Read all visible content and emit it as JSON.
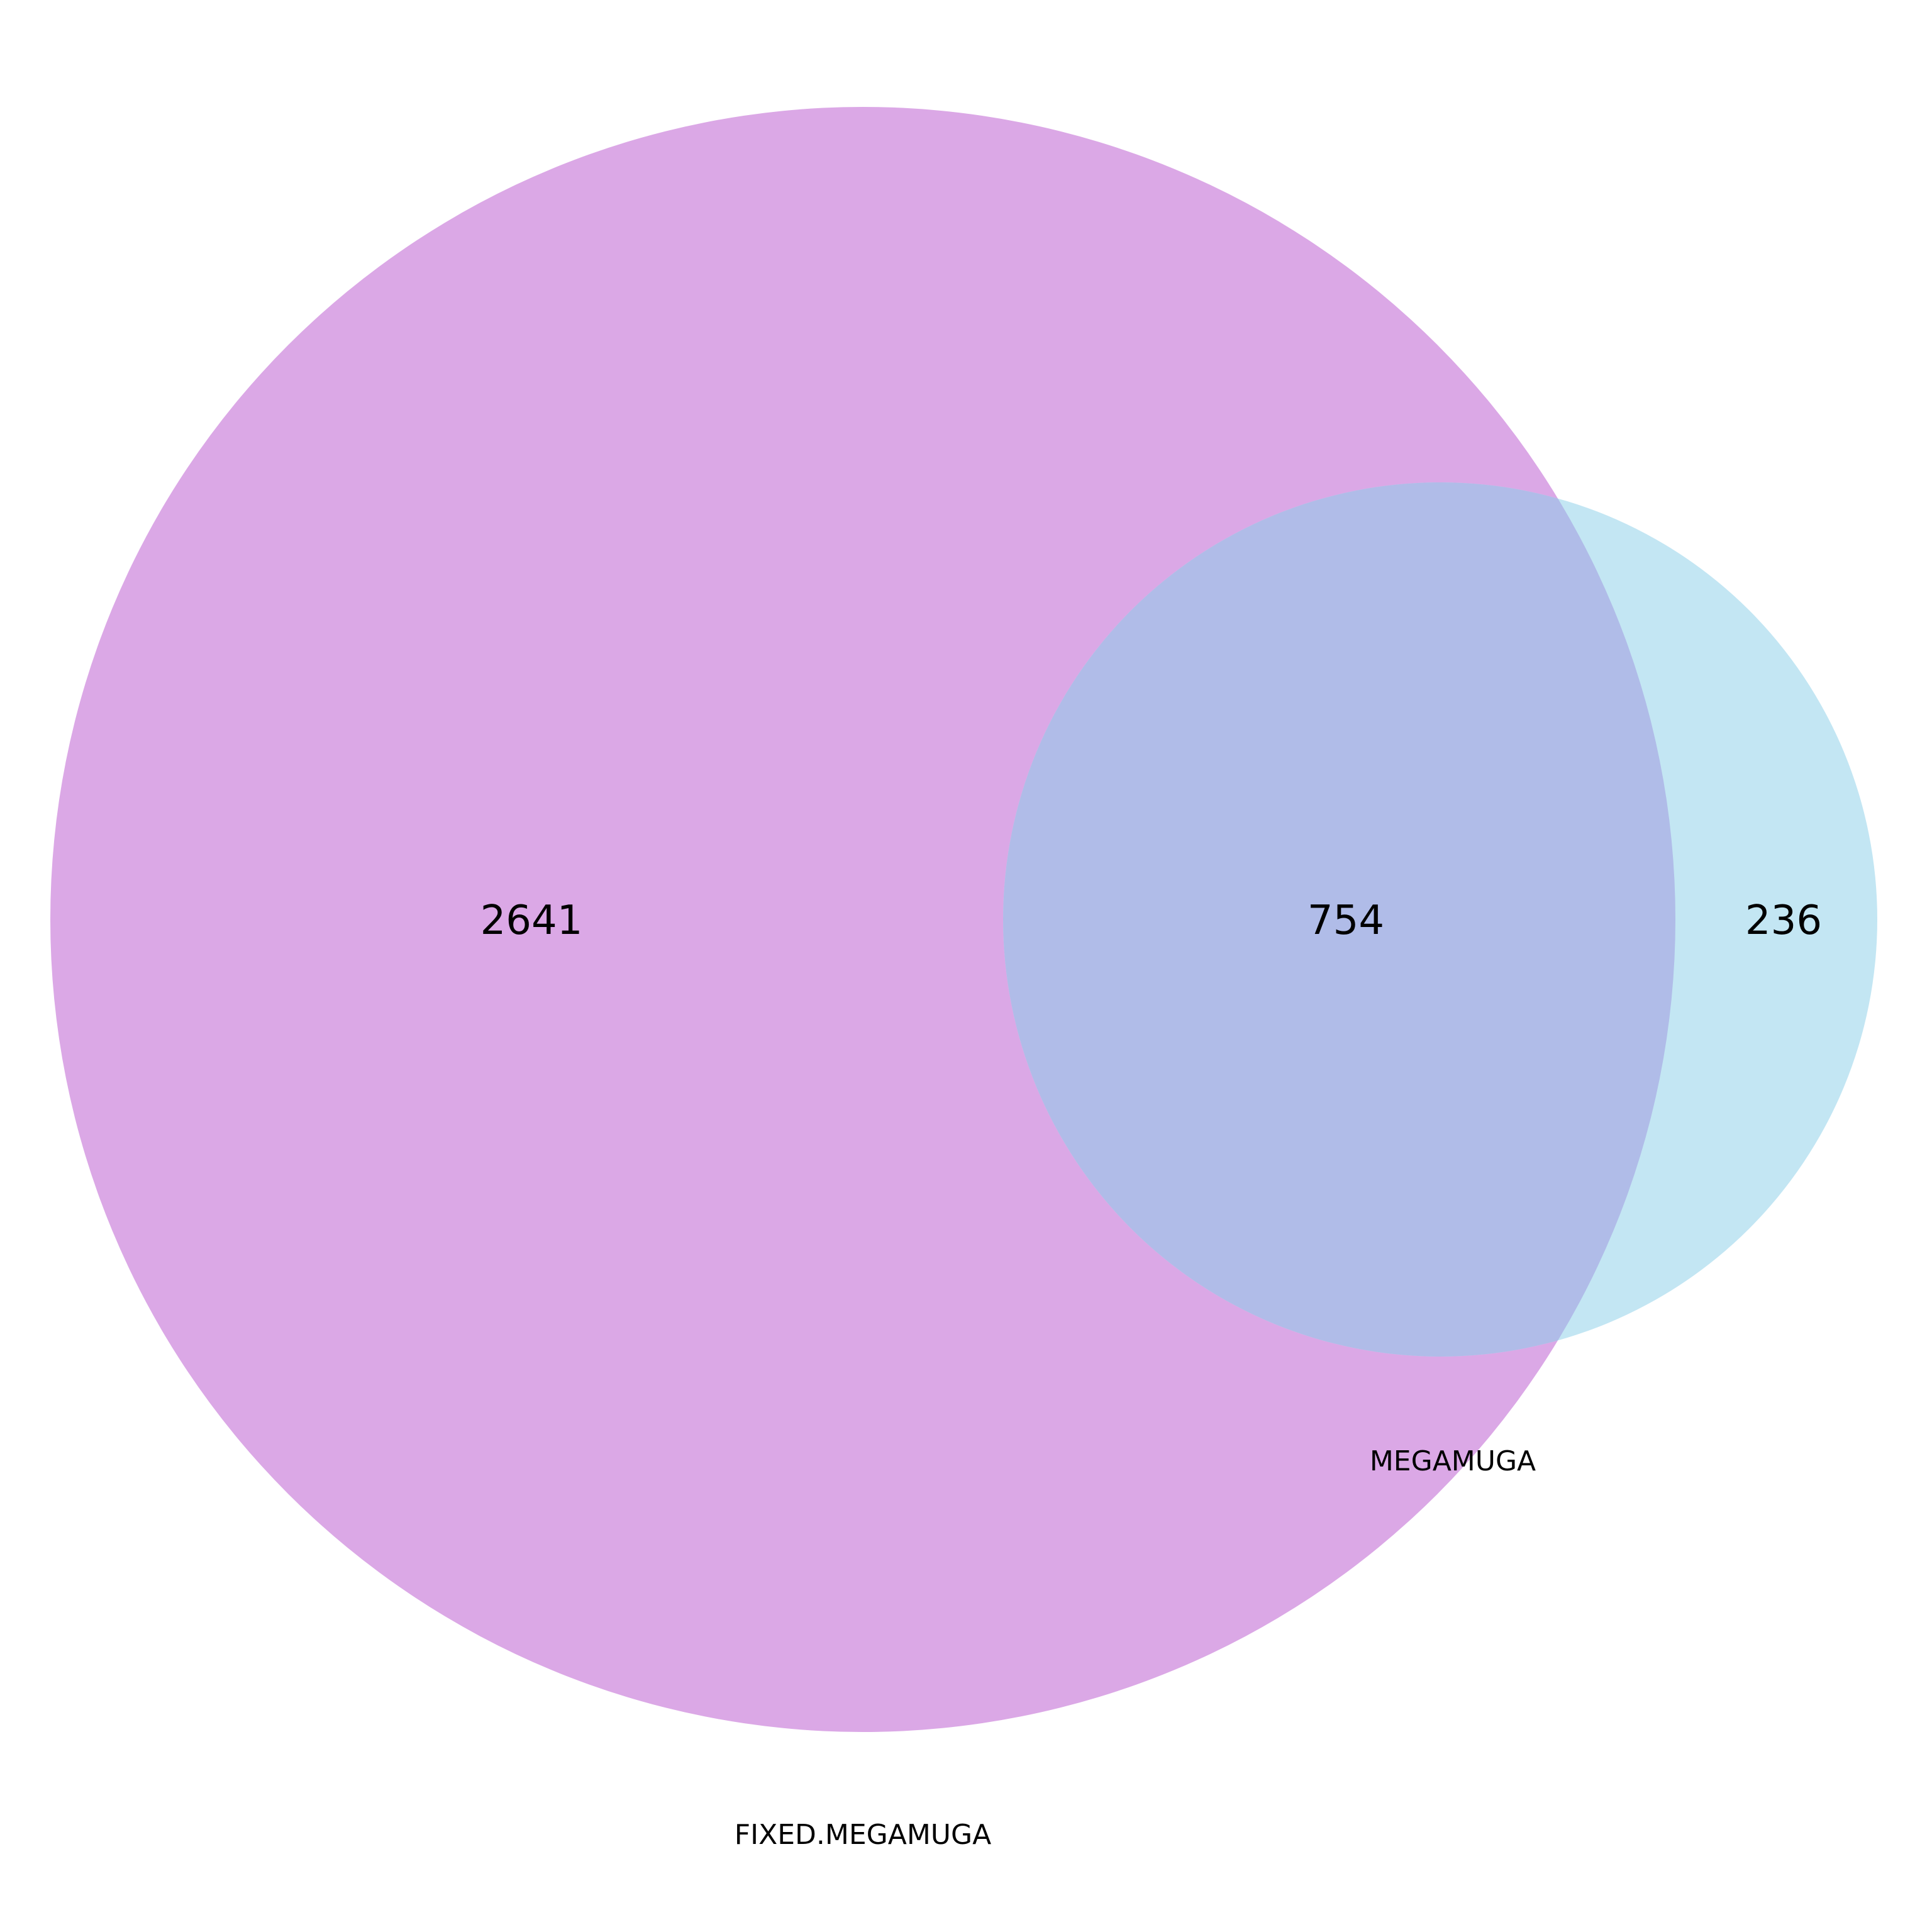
{
  "venn": {
    "sets": [
      {
        "name": "FIXED.MEGAMUGA",
        "color": "#DBA8E6"
      },
      {
        "name": "MEGAMUGA",
        "color": "#C3E6F3"
      }
    ],
    "overlap_color": "#B0BCE8",
    "regions": {
      "fixed_only": "2641",
      "both": "754",
      "megamuga_only": "236"
    }
  }
}
